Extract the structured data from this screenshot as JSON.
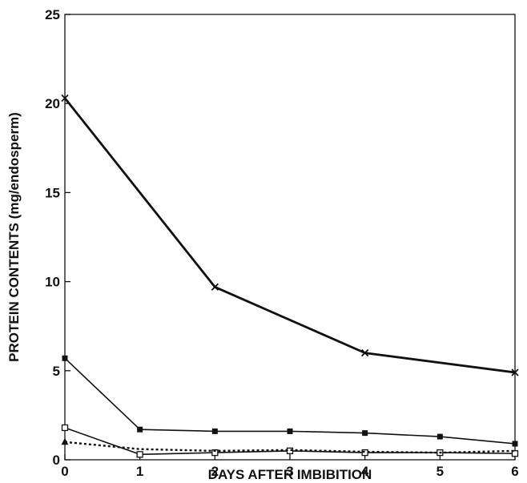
{
  "chart_data": {
    "type": "line",
    "xlabel": "DAYS AFTER IMBIBITION",
    "ylabel": "PROTEIN CONTENTS (mg/endosperm)",
    "xlim": [
      0,
      6
    ],
    "ylim": [
      0,
      25
    ],
    "x_ticks": [
      "0",
      "1",
      "2",
      "3",
      "4",
      "5",
      "6"
    ],
    "y_ticks": [
      "0",
      "5",
      "10",
      "15",
      "20",
      "25"
    ],
    "grid": false,
    "legend": "none",
    "series": [
      {
        "marker": "x",
        "line_style": "solid-thick",
        "color": "#111111",
        "points": [
          [
            0,
            20.3
          ],
          [
            2,
            9.7
          ],
          [
            4,
            6.0
          ],
          [
            6,
            4.9
          ]
        ]
      },
      {
        "marker": "filled-square",
        "line_style": "solid",
        "color": "#111111",
        "points": [
          [
            0,
            5.7
          ],
          [
            1,
            1.7
          ],
          [
            2,
            1.6
          ],
          [
            3,
            1.6
          ],
          [
            4,
            1.5
          ],
          [
            5,
            1.3
          ],
          [
            6,
            0.9
          ]
        ]
      },
      {
        "marker": "open-square",
        "line_style": "solid",
        "color": "#111111",
        "points": [
          [
            0,
            1.8
          ],
          [
            1,
            0.3
          ],
          [
            2,
            0.4
          ],
          [
            3,
            0.5
          ],
          [
            4,
            0.4
          ],
          [
            5,
            0.4
          ],
          [
            6,
            0.35
          ]
        ]
      },
      {
        "marker": "triangle",
        "line_style": "dotted",
        "color": "#111111",
        "points": [
          [
            0,
            1.0
          ],
          [
            1,
            0.6
          ],
          [
            2,
            0.5
          ],
          [
            3,
            0.55
          ],
          [
            4,
            0.45
          ],
          [
            5,
            0.4
          ],
          [
            6,
            0.5
          ]
        ]
      }
    ]
  }
}
